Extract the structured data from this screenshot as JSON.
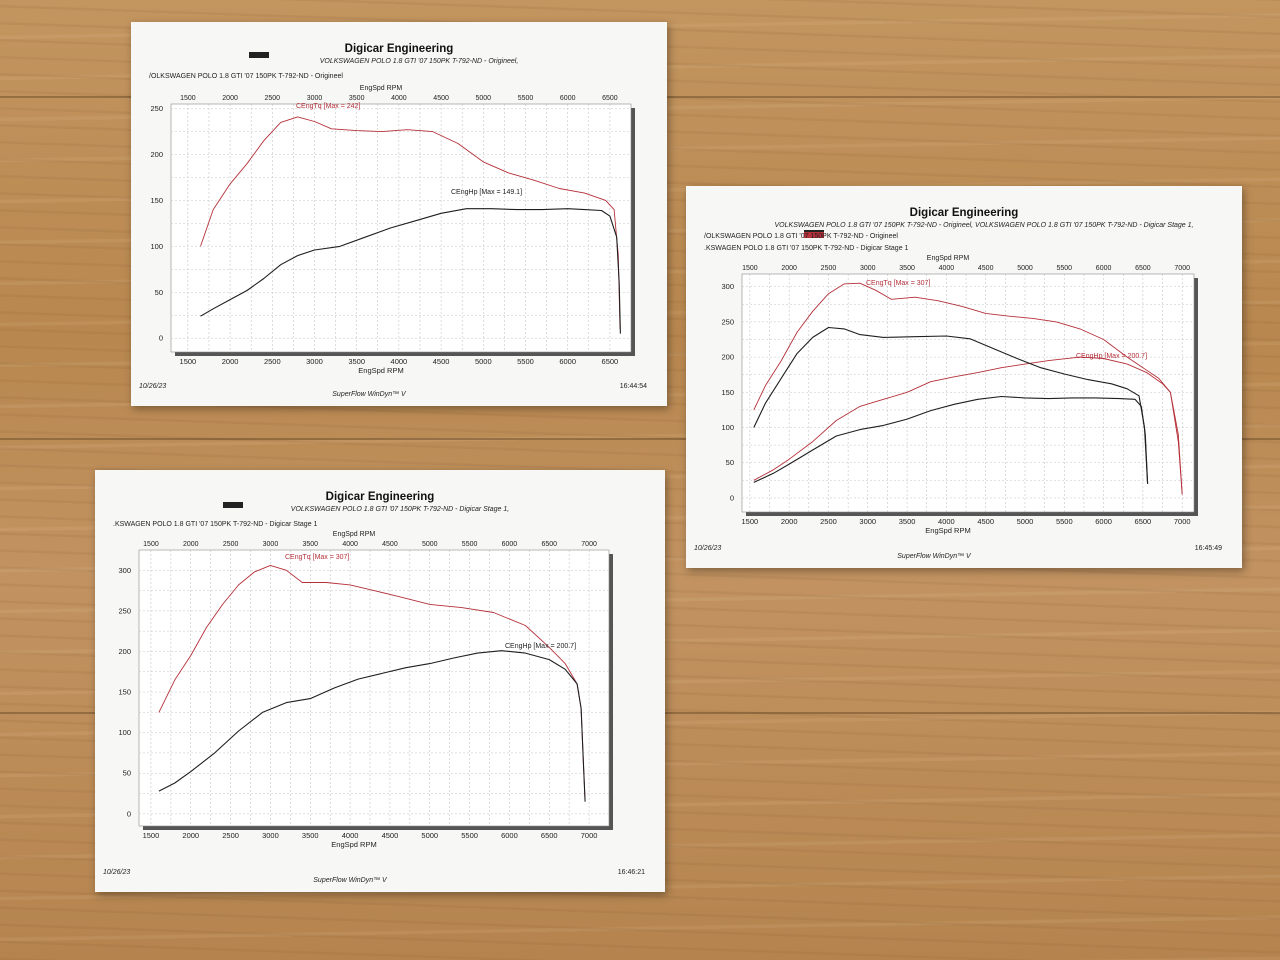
{
  "sheets": [
    {
      "id": "sheet-original",
      "header": {
        "company": "Digicar Engineering",
        "run_title": "VOLKSWAGEN POLO 1.8 GTI '07 150PK T-792-ND - Origineel,",
        "legend_lines": [
          "/OLKSWAGEN POLO 1.8 GTI '07 150PK T-792-ND - Origineel"
        ],
        "top_axis_label": "EngSpd RPM",
        "bottom_axis_label": "EngSpd RPM",
        "date": "10/26/23",
        "software": "SuperFlow WinDyn™ V",
        "time": "16:44:54"
      },
      "chart_data": {
        "type": "line",
        "xlabel": "EngSpd RPM",
        "xlim": [
          1300,
          6750
        ],
        "ylim": [
          -15,
          255
        ],
        "x_ticks": [
          1500,
          2000,
          2500,
          3000,
          3500,
          4000,
          4500,
          5000,
          5500,
          6000,
          6500
        ],
        "top_ticks": [
          1500,
          2000,
          2500,
          3000,
          3500,
          4000,
          4500,
          5000,
          5500,
          6000,
          6500
        ],
        "y_ticks": [
          0,
          50,
          100,
          150,
          200,
          250
        ],
        "series": [
          {
            "name": "CEngTq [Max = 242]",
            "color": "#b5303a",
            "points": [
              [
                1650,
                100
              ],
              [
                1800,
                140
              ],
              [
                2000,
                168
              ],
              [
                2200,
                190
              ],
              [
                2400,
                215
              ],
              [
                2600,
                235
              ],
              [
                2800,
                241
              ],
              [
                3000,
                236
              ],
              [
                3200,
                228
              ],
              [
                3500,
                226
              ],
              [
                3800,
                225
              ],
              [
                4100,
                227
              ],
              [
                4400,
                225
              ],
              [
                4700,
                212
              ],
              [
                5000,
                192
              ],
              [
                5300,
                180
              ],
              [
                5600,
                172
              ],
              [
                5900,
                163
              ],
              [
                6200,
                158
              ],
              [
                6450,
                150
              ],
              [
                6550,
                140
              ],
              [
                6600,
                90
              ],
              [
                6620,
                10
              ]
            ]
          },
          {
            "name": "CEngHp [Max = 149.1]",
            "color": "#1f1f1f",
            "points": [
              [
                1650,
                24
              ],
              [
                1800,
                32
              ],
              [
                2000,
                42
              ],
              [
                2200,
                52
              ],
              [
                2400,
                65
              ],
              [
                2600,
                80
              ],
              [
                2800,
                90
              ],
              [
                3000,
                96
              ],
              [
                3300,
                100
              ],
              [
                3600,
                110
              ],
              [
                3900,
                120
              ],
              [
                4200,
                128
              ],
              [
                4500,
                136
              ],
              [
                4800,
                141
              ],
              [
                5100,
                141
              ],
              [
                5400,
                140
              ],
              [
                5700,
                140
              ],
              [
                6000,
                141
              ],
              [
                6200,
                140
              ],
              [
                6400,
                139
              ],
              [
                6500,
                133
              ],
              [
                6580,
                110
              ],
              [
                6610,
                60
              ],
              [
                6625,
                5
              ]
            ]
          }
        ]
      }
    },
    {
      "id": "sheet-compare",
      "header": {
        "company": "Digicar Engineering",
        "run_title": "VOLKSWAGEN POLO 1.8 GTI '07 150PK T-792-ND - Origineel, VOLKSWAGEN POLO 1.8 GTI '07 150PK T-792-ND - Digicar Stage 1,",
        "legend_lines": [
          "/OLKSWAGEN POLO 1.8 GTI '07 150PK T-792-ND - Origineel",
          ".KSWAGEN POLO 1.8 GTI '07 150PK T-792-ND - Digicar Stage 1"
        ],
        "top_axis_label": "EngSpd RPM",
        "bottom_axis_label": "EngSpd RPM",
        "date": "10/26/23",
        "software": "SuperFlow WinDyn™ V",
        "time": "16:45:49"
      },
      "chart_data": {
        "type": "line",
        "xlabel": "EngSpd RPM",
        "xlim": [
          1400,
          7150
        ],
        "ylim": [
          -20,
          318
        ],
        "x_ticks": [
          1500,
          2000,
          2500,
          3000,
          3500,
          4000,
          4500,
          5000,
          5500,
          6000,
          6500,
          7000
        ],
        "top_ticks": [
          1500,
          2000,
          2500,
          3000,
          3500,
          4000,
          4500,
          5000,
          5500,
          6000,
          6500,
          7000
        ],
        "y_ticks": [
          0,
          50,
          100,
          150,
          200,
          250,
          300
        ],
        "series": [
          {
            "name": "CEngTq [Max = 307]",
            "color": "#b5303a",
            "points": [
              [
                1550,
                125
              ],
              [
                1700,
                160
              ],
              [
                1900,
                195
              ],
              [
                2100,
                235
              ],
              [
                2300,
                265
              ],
              [
                2500,
                290
              ],
              [
                2700,
                304
              ],
              [
                2900,
                305
              ],
              [
                3100,
                295
              ],
              [
                3300,
                282
              ],
              [
                3600,
                285
              ],
              [
                3900,
                280
              ],
              [
                4200,
                272
              ],
              [
                4500,
                262
              ],
              [
                4800,
                258
              ],
              [
                5100,
                255
              ],
              [
                5400,
                250
              ],
              [
                5700,
                240
              ],
              [
                6000,
                225
              ],
              [
                6300,
                200
              ],
              [
                6500,
                185
              ],
              [
                6700,
                170
              ],
              [
                6850,
                150
              ],
              [
                6950,
                80
              ],
              [
                7000,
                5
              ]
            ]
          },
          {
            "name": "CEngHp [Max = 200.7]",
            "color": "#b5303a",
            "points": [
              [
                1550,
                25
              ],
              [
                1800,
                40
              ],
              [
                2000,
                55
              ],
              [
                2300,
                80
              ],
              [
                2600,
                110
              ],
              [
                2900,
                130
              ],
              [
                3200,
                140
              ],
              [
                3500,
                150
              ],
              [
                3800,
                165
              ],
              [
                4100,
                172
              ],
              [
                4400,
                178
              ],
              [
                4700,
                185
              ],
              [
                5000,
                190
              ],
              [
                5300,
                195
              ],
              [
                5700,
                200
              ],
              [
                6000,
                198
              ],
              [
                6300,
                190
              ],
              [
                6550,
                178
              ],
              [
                6750,
                162
              ],
              [
                6850,
                150
              ],
              [
                6950,
                90
              ],
              [
                7000,
                5
              ]
            ]
          },
          {
            "name": "CEngTq",
            "color": "#1f1f1f",
            "points": [
              [
                1550,
                100
              ],
              [
                1700,
                135
              ],
              [
                1900,
                170
              ],
              [
                2100,
                205
              ],
              [
                2300,
                228
              ],
              [
                2500,
                242
              ],
              [
                2700,
                240
              ],
              [
                2900,
                232
              ],
              [
                3200,
                228
              ],
              [
                3600,
                229
              ],
              [
                4000,
                230
              ],
              [
                4300,
                226
              ],
              [
                4600,
                212
              ],
              [
                4900,
                198
              ],
              [
                5200,
                185
              ],
              [
                5500,
                176
              ],
              [
                5800,
                168
              ],
              [
                6100,
                162
              ],
              [
                6300,
                155
              ],
              [
                6450,
                145
              ],
              [
                6520,
                100
              ],
              [
                6560,
                20
              ]
            ]
          },
          {
            "name": "CEngHp",
            "color": "#1f1f1f",
            "points": [
              [
                1550,
                22
              ],
              [
                1800,
                35
              ],
              [
                2000,
                48
              ],
              [
                2300,
                68
              ],
              [
                2600,
                88
              ],
              [
                2900,
                97
              ],
              [
                3200,
                103
              ],
              [
                3500,
                112
              ],
              [
                3800,
                124
              ],
              [
                4100,
                133
              ],
              [
                4400,
                140
              ],
              [
                4700,
                144
              ],
              [
                5000,
                142
              ],
              [
                5300,
                141
              ],
              [
                5600,
                142
              ],
              [
                5900,
                142
              ],
              [
                6200,
                141
              ],
              [
                6400,
                140
              ],
              [
                6480,
                130
              ],
              [
                6530,
                90
              ],
              [
                6560,
                20
              ]
            ]
          }
        ]
      }
    },
    {
      "id": "sheet-stage1",
      "header": {
        "company": "Digicar Engineering",
        "run_title": "VOLKSWAGEN POLO 1.8 GTI '07 150PK T-792-ND - Digicar Stage 1,",
        "legend_lines": [
          ".KSWAGEN POLO 1.8 GTI '07 150PK T-792-ND - Digicar Stage 1"
        ],
        "top_axis_label": "EngSpd RPM",
        "bottom_axis_label": "EngSpd RPM",
        "date": "10/26/23",
        "software": "SuperFlow WinDyn™ V",
        "time": "16:46:21"
      },
      "chart_data": {
        "type": "line",
        "xlabel": "EngSpd RPM",
        "xlim": [
          1350,
          7250
        ],
        "ylim": [
          -15,
          325
        ],
        "x_ticks": [
          1500,
          2000,
          2500,
          3000,
          3500,
          4000,
          4500,
          5000,
          5500,
          6000,
          6500,
          7000
        ],
        "top_ticks": [
          1500,
          2000,
          2500,
          3000,
          3500,
          4000,
          4500,
          5000,
          5500,
          6000,
          6500,
          7000
        ],
        "y_ticks": [
          0,
          50,
          100,
          150,
          200,
          250,
          300
        ],
        "series": [
          {
            "name": "CEngTq [Max = 307]",
            "color": "#b5303a",
            "points": [
              [
                1600,
                125
              ],
              [
                1800,
                165
              ],
              [
                2000,
                195
              ],
              [
                2200,
                230
              ],
              [
                2400,
                258
              ],
              [
                2600,
                282
              ],
              [
                2800,
                298
              ],
              [
                3000,
                306
              ],
              [
                3200,
                300
              ],
              [
                3400,
                285
              ],
              [
                3700,
                285
              ],
              [
                4000,
                282
              ],
              [
                4300,
                275
              ],
              [
                4600,
                268
              ],
              [
                5000,
                258
              ],
              [
                5400,
                254
              ],
              [
                5800,
                248
              ],
              [
                6200,
                232
              ],
              [
                6500,
                205
              ],
              [
                6700,
                185
              ],
              [
                6850,
                160
              ],
              [
                6900,
                130
              ],
              [
                6930,
                60
              ],
              [
                6950,
                15
              ]
            ]
          },
          {
            "name": "CEngHp [Max = 200.7]",
            "color": "#1f1f1f",
            "points": [
              [
                1600,
                28
              ],
              [
                1800,
                38
              ],
              [
                2000,
                52
              ],
              [
                2300,
                75
              ],
              [
                2600,
                102
              ],
              [
                2900,
                125
              ],
              [
                3200,
                137
              ],
              [
                3500,
                142
              ],
              [
                3800,
                155
              ],
              [
                4100,
                166
              ],
              [
                4400,
                173
              ],
              [
                4700,
                180
              ],
              [
                5000,
                185
              ],
              [
                5300,
                192
              ],
              [
                5600,
                198
              ],
              [
                5900,
                201
              ],
              [
                6200,
                198
              ],
              [
                6500,
                190
              ],
              [
                6700,
                178
              ],
              [
                6850,
                160
              ],
              [
                6900,
                130
              ],
              [
                6930,
                60
              ],
              [
                6950,
                15
              ]
            ]
          }
        ]
      }
    }
  ]
}
